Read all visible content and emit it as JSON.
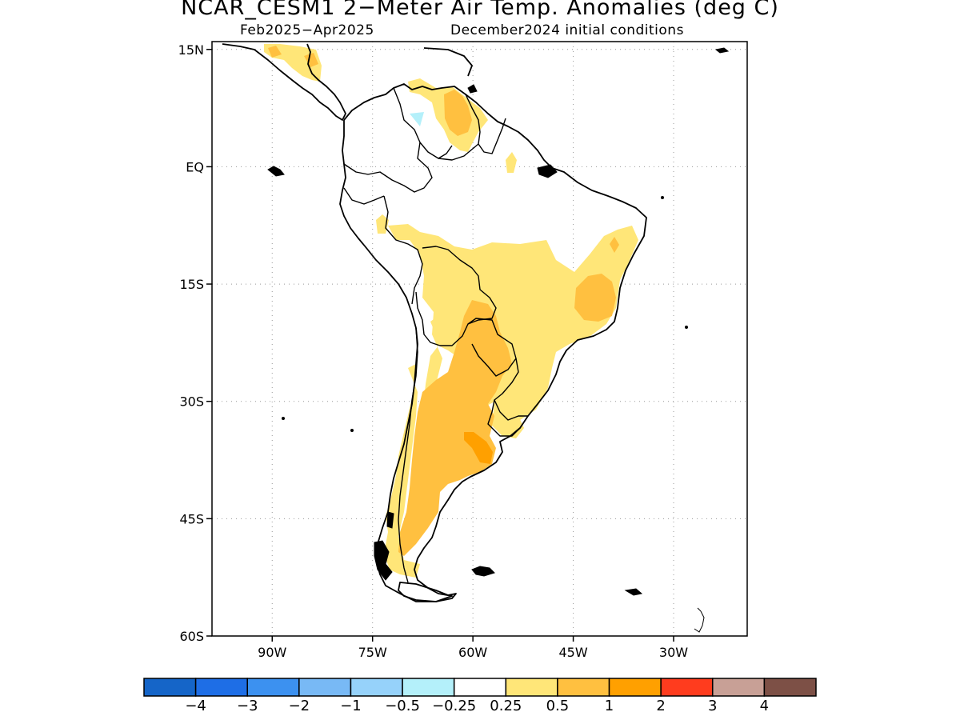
{
  "title": "NCAR_CESM1 2−Meter Air Temp. Anomalies (deg C)",
  "subtitle_period": "Feb2025−Apr2025",
  "subtitle_init": "December2024 initial conditions",
  "lat_ticks": [
    {
      "lat": 15,
      "label": "15N"
    },
    {
      "lat": 0,
      "label": "EQ"
    },
    {
      "lat": -15,
      "label": "15S"
    },
    {
      "lat": -30,
      "label": "30S"
    },
    {
      "lat": -45,
      "label": "45S"
    },
    {
      "lat": -60,
      "label": "60S"
    }
  ],
  "lon_ticks": [
    {
      "lon": -90,
      "label": "90W"
    },
    {
      "lon": -75,
      "label": "75W"
    },
    {
      "lon": -60,
      "label": "60W"
    },
    {
      "lon": -45,
      "label": "45W"
    },
    {
      "lon": -30,
      "label": "30W"
    }
  ],
  "map_extent": {
    "lon_min": -99,
    "lon_max": -19,
    "lat_min": -60,
    "lat_max": 16
  },
  "colorbar": {
    "colors": [
      "#1565c8",
      "#1e6ee6",
      "#3c91f0",
      "#78b9f5",
      "#96d2fa",
      "#b4f0fa",
      "#ffffff",
      "#ffe678",
      "#ffc040",
      "#ffa000",
      "#ff3c1e",
      "#c8a096",
      "#7d5046"
    ],
    "labels": [
      "−4",
      "−3",
      "−2",
      "−1",
      "−0.5",
      "−0.25",
      "0.25",
      "0.5",
      "1",
      "2",
      "3",
      "4"
    ]
  },
  "anomaly_colors": {
    "light": "#ffe678",
    "medium": "#ffc040",
    "cool": "#b4f0fa"
  }
}
